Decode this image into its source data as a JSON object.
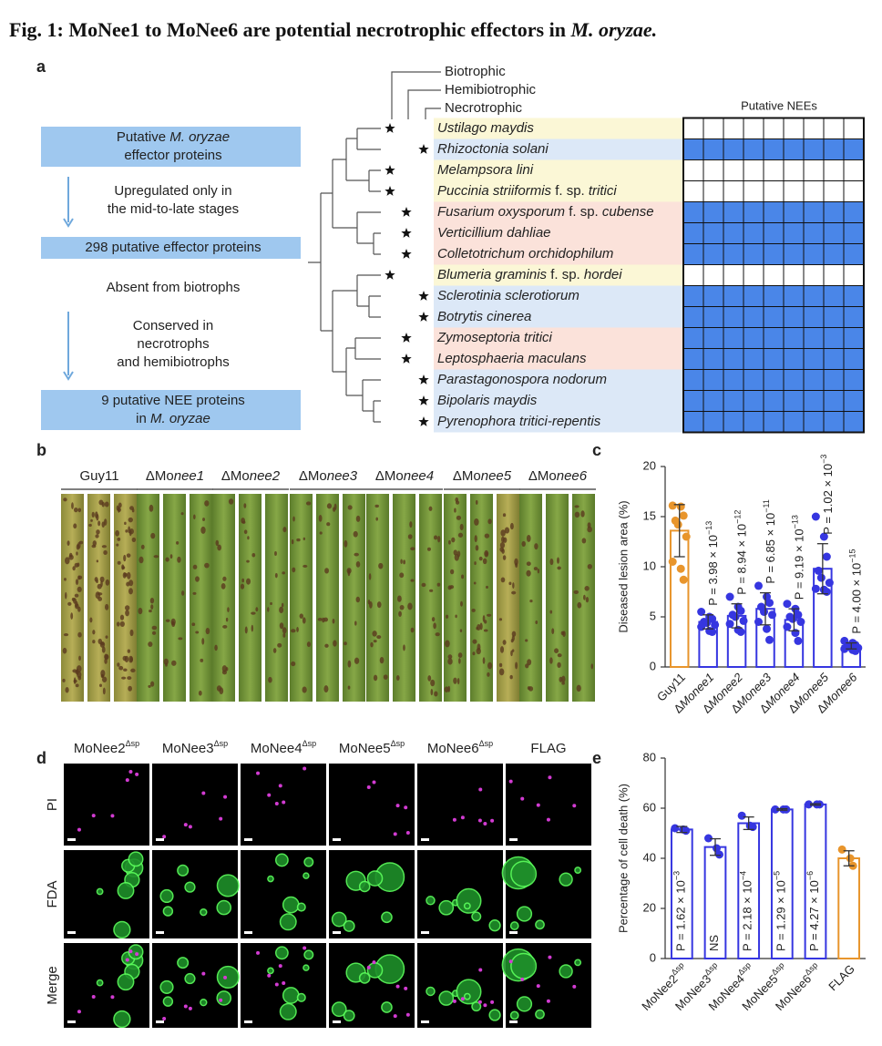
{
  "title": {
    "text": "Fig. 1: MoNee1 to MoNee6 are potential necrotrophic effectors in ",
    "italic": "M. oryzae."
  },
  "panel_a": {
    "label": "a",
    "box_color": "#9fc8ef",
    "workflow": [
      {
        "kind": "box",
        "lines": [
          [
            "Putative ",
            "M. oryzae"
          ],
          [
            "effector proteins"
          ]
        ]
      },
      {
        "kind": "arrow",
        "lines": [
          [
            "Upregulated only in"
          ],
          [
            "the mid-to-late stages"
          ]
        ]
      },
      {
        "kind": "box",
        "lines": [
          [
            "298 putative effector proteins"
          ]
        ]
      },
      {
        "kind": "text",
        "lines": [
          [
            "Absent from biotrophs"
          ]
        ]
      },
      {
        "kind": "arrow",
        "lines": [
          [
            "Conserved in"
          ],
          [
            "necrotrophs"
          ],
          [
            "and hemibiotrophs"
          ]
        ]
      },
      {
        "kind": "box",
        "lines": [
          [
            "9 putative NEE proteins"
          ],
          [
            "in ",
            "M. oryzae"
          ]
        ]
      }
    ],
    "lifestyles": [
      {
        "label": "Biotrophic",
        "color": "#fbf7d6"
      },
      {
        "label": "Hemibiotrophic",
        "color": "#fbe2da"
      },
      {
        "label": "Necrotrophic",
        "color": "#dce8f7"
      }
    ],
    "grid_header": "Putative NEEs",
    "grid_color": "#4a86e8",
    "species": [
      {
        "name": [
          "Ustilago maydis"
        ],
        "lifestyle": 0,
        "nees": [
          0,
          0,
          0,
          0,
          0,
          0,
          0,
          0,
          0
        ]
      },
      {
        "name": [
          "Rhizoctonia solani"
        ],
        "lifestyle": 2,
        "nees": [
          1,
          1,
          1,
          1,
          1,
          1,
          1,
          1,
          1
        ]
      },
      {
        "name": [
          "Melampsora lini"
        ],
        "lifestyle": 0,
        "nees": [
          0,
          0,
          0,
          0,
          0,
          0,
          0,
          0,
          0
        ]
      },
      {
        "name": [
          "Puccinia striiformis",
          " f. sp. ",
          "tritici"
        ],
        "lifestyle": 0,
        "nees": [
          0,
          0,
          0,
          0,
          0,
          0,
          0,
          0,
          0
        ]
      },
      {
        "name": [
          "Fusarium oxysporum",
          " f. sp. ",
          "cubense"
        ],
        "lifestyle": 1,
        "nees": [
          1,
          1,
          1,
          1,
          1,
          1,
          1,
          1,
          1
        ]
      },
      {
        "name": [
          "Verticillium dahliae"
        ],
        "lifestyle": 1,
        "nees": [
          1,
          1,
          1,
          1,
          1,
          1,
          1,
          1,
          1
        ]
      },
      {
        "name": [
          "Colletotrichum orchidophilum"
        ],
        "lifestyle": 1,
        "nees": [
          1,
          1,
          1,
          1,
          1,
          1,
          1,
          1,
          1
        ]
      },
      {
        "name": [
          "Blumeria graminis",
          " f. sp.  ",
          "hordei"
        ],
        "lifestyle": 0,
        "nees": [
          0,
          0,
          0,
          0,
          0,
          0,
          0,
          0,
          0
        ]
      },
      {
        "name": [
          "Sclerotinia sclerotiorum"
        ],
        "lifestyle": 2,
        "nees": [
          1,
          1,
          1,
          1,
          1,
          1,
          1,
          1,
          1
        ]
      },
      {
        "name": [
          "Botrytis cinerea"
        ],
        "lifestyle": 2,
        "nees": [
          1,
          1,
          1,
          1,
          1,
          1,
          1,
          1,
          1
        ]
      },
      {
        "name": [
          "Zymoseptoria tritici"
        ],
        "lifestyle": 1,
        "nees": [
          1,
          1,
          1,
          1,
          1,
          1,
          1,
          1,
          1
        ]
      },
      {
        "name": [
          "Leptosphaeria maculans"
        ],
        "lifestyle": 1,
        "nees": [
          1,
          1,
          1,
          1,
          1,
          1,
          1,
          1,
          1
        ]
      },
      {
        "name": [
          "Parastagonospora nodorum"
        ],
        "lifestyle": 2,
        "nees": [
          1,
          1,
          1,
          1,
          1,
          1,
          1,
          1,
          1
        ]
      },
      {
        "name": [
          "Bipolaris maydis"
        ],
        "lifestyle": 2,
        "nees": [
          1,
          1,
          1,
          1,
          1,
          1,
          1,
          1,
          1
        ]
      },
      {
        "name": [
          "Pyrenophora tritici-repentis"
        ],
        "lifestyle": 2,
        "nees": [
          1,
          1,
          1,
          1,
          1,
          1,
          1,
          1,
          1
        ]
      }
    ]
  },
  "panel_b": {
    "label": "b",
    "columns": [
      [
        "Guy11"
      ],
      [
        "ΔMo",
        "nee1"
      ],
      [
        "ΔMo",
        "nee2"
      ],
      [
        "ΔMo",
        "nee3"
      ],
      [
        "ΔMo",
        "nee4"
      ],
      [
        "ΔMo",
        "nee5"
      ],
      [
        "ΔMo",
        "nee6"
      ]
    ]
  },
  "panel_c": {
    "type": "bar",
    "label": "c",
    "ylabel": "Diseased lesion area (%)",
    "ylim": [
      0,
      20
    ],
    "yticks": [
      0,
      5,
      10,
      15,
      20
    ],
    "annotation_position": "above",
    "categories": [
      [
        "Guy11"
      ],
      [
        "Δ",
        "Monee1"
      ],
      [
        "Δ",
        "Monee2"
      ],
      [
        "Δ",
        "Monee3"
      ],
      [
        "Δ",
        "Monee4"
      ],
      [
        "Δ",
        "Monee5"
      ],
      [
        "Δ",
        "Monee6"
      ]
    ],
    "colors": [
      "#e8952c",
      "#3636e0",
      "#3636e0",
      "#3636e0",
      "#3636e0",
      "#3636e0",
      "#3636e0"
    ],
    "values": [
      13.6,
      4.5,
      5.1,
      5.8,
      4.7,
      9.8,
      2.1
    ],
    "errors": [
      2.6,
      0.7,
      1.2,
      1.6,
      1.1,
      2.5,
      0.3
    ],
    "points": [
      [
        16.1,
        16.0,
        15.1,
        14.6,
        14.2,
        13.0,
        10.5,
        9.8,
        8.7
      ],
      [
        5.5,
        5.0,
        4.8,
        4.5,
        4.4,
        4.2,
        4.0,
        3.6,
        3.5
      ],
      [
        7.0,
        6.0,
        5.6,
        5.2,
        5.0,
        4.6,
        4.3,
        3.7,
        3.5
      ],
      [
        8.1,
        7.0,
        6.4,
        6.0,
        5.5,
        5.2,
        4.5,
        3.8,
        2.7
      ],
      [
        6.3,
        5.8,
        5.2,
        5.0,
        4.8,
        4.5,
        4.0,
        3.4,
        2.6
      ],
      [
        15.0,
        13.0,
        11.0,
        9.6,
        8.9,
        8.4,
        7.8,
        7.7,
        7.5
      ],
      [
        2.6,
        2.4,
        2.2,
        2.1,
        2.0,
        1.9,
        1.8,
        1.7,
        1.6
      ]
    ],
    "annotations": [
      null,
      {
        "text": "P = 3.98 × 10",
        "exp": "−13"
      },
      {
        "text": "P = 8.94 × 10",
        "exp": "−12"
      },
      {
        "text": "P = 6.85 × 10",
        "exp": "−11"
      },
      {
        "text": "P = 9.19 × 10",
        "exp": "−13"
      },
      {
        "text": "P = 1.02 × 10",
        "exp": "−3"
      },
      {
        "text": "P = 4.00 × 10",
        "exp": "−15"
      }
    ]
  },
  "panel_d": {
    "label": "d",
    "columns": [
      {
        "name": "MoNee2",
        "sup": "Δsp"
      },
      {
        "name": "MoNee3",
        "sup": "Δsp"
      },
      {
        "name": "MoNee4",
        "sup": "Δsp"
      },
      {
        "name": "MoNee5",
        "sup": "Δsp"
      },
      {
        "name": "MoNee6",
        "sup": "Δsp"
      },
      {
        "name": "FLAG"
      }
    ],
    "rows": [
      "PI",
      "FDA",
      "Merge"
    ]
  },
  "panel_e": {
    "type": "bar",
    "label": "e",
    "ylabel": "Percentage of cell death (%)",
    "ylim": [
      0,
      80
    ],
    "yticks": [
      0,
      20,
      40,
      60,
      80
    ],
    "annotation_position": "inside",
    "categories": [
      {
        "name": "MoNee2",
        "sup": "Δsp"
      },
      {
        "name": "MoNee3",
        "sup": "Δsp"
      },
      {
        "name": "MoNee4",
        "sup": "Δsp"
      },
      {
        "name": "MoNee5",
        "sup": "Δsp"
      },
      {
        "name": "MoNee6",
        "sup": "Δsp"
      },
      {
        "name": "FLAG"
      }
    ],
    "colors": [
      "#3636e0",
      "#3636e0",
      "#3636e0",
      "#3636e0",
      "#3636e0",
      "#e8952c"
    ],
    "values": [
      51.5,
      44.5,
      54,
      59.5,
      61.5,
      40
    ],
    "errors": [
      1.2,
      3.3,
      2.5,
      0.3,
      0.3,
      3
    ],
    "points": [
      [
        52,
        51.5,
        51
      ],
      [
        48,
        44,
        41.5
      ],
      [
        57,
        53,
        52.5
      ],
      [
        59.5,
        59.5,
        59.5
      ],
      [
        61.5,
        61.5,
        61.5
      ],
      [
        43.5,
        40,
        37
      ]
    ],
    "annotations": [
      {
        "text": "P = 1.62 × 10",
        "exp": "−3"
      },
      {
        "text": "NS"
      },
      {
        "text": "P = 2.18 × 10",
        "exp": "−4"
      },
      {
        "text": "P = 1.29 × 10",
        "exp": "−5"
      },
      {
        "text": "P = 4.27 × 10",
        "exp": "−6"
      },
      null
    ]
  }
}
